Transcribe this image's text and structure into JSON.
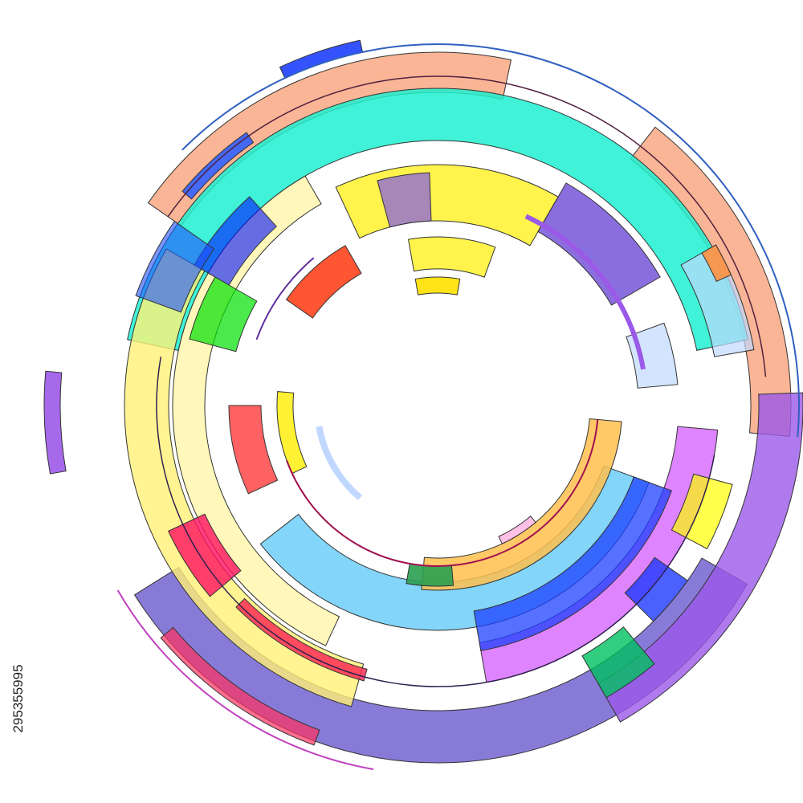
{
  "image": {
    "watermark_id": "295355995"
  }
}
